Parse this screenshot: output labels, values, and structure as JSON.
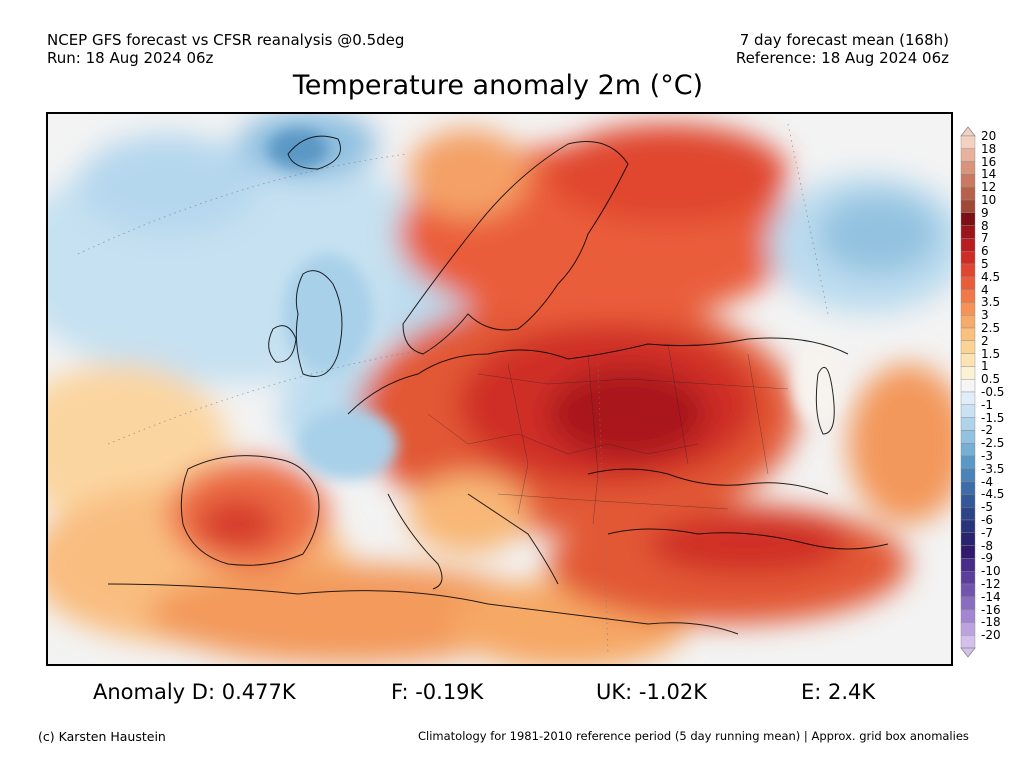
{
  "header": {
    "line1_left": "NCEP GFS forecast vs CFSR reanalysis @0.5deg",
    "line2_left": "Run: 18 Aug 2024 06z",
    "line1_right": "7 day forecast mean (168h)",
    "line2_right": "Reference: 18 Aug 2024 06z"
  },
  "title": "Temperature anomaly 2m (°C)",
  "legend": {
    "labels": [
      "20",
      "18",
      "16",
      "14",
      "12",
      "10",
      "9",
      "8",
      "7",
      "6",
      "5",
      "4.5",
      "4",
      "3.5",
      "3",
      "2.5",
      "2",
      "1.5",
      "1",
      "0.5",
      "-0.5",
      "-1",
      "-1.5",
      "-2",
      "-2.5",
      "-3",
      "-3.5",
      "-4",
      "-4.5",
      "-5",
      "-6",
      "-7",
      "-8",
      "-9",
      "-10",
      "-12",
      "-14",
      "-16",
      "-18",
      "-20"
    ],
    "colors": [
      "#f4d0c0",
      "#e8b19b",
      "#d9957c",
      "#c97a62",
      "#b7614b",
      "#a04837",
      "#7e0f16",
      "#9a1419",
      "#b81d1f",
      "#d02c26",
      "#e0462f",
      "#ea5d3a",
      "#f07947",
      "#f59357",
      "#f7ab6a",
      "#f9c07e",
      "#fbd396",
      "#fce3b2",
      "#fdf1d4",
      "#f5f5f5",
      "#e1eef8",
      "#c9e2f2",
      "#aed3ea",
      "#93c2e0",
      "#77aed4",
      "#5c98c5",
      "#4b82b7",
      "#3e6ca8",
      "#345897",
      "#2d4486",
      "#283479",
      "#2a236d",
      "#311a6e",
      "#472c88",
      "#5b3e9b",
      "#7254ad",
      "#8a6cc0",
      "#a386d1",
      "#bca2df",
      "#d3c0ec"
    ]
  },
  "anomalies": [
    {
      "label": "Anomaly D: 0.477K",
      "region": "D",
      "value": 0.477
    },
    {
      "label": "F: -0.19K",
      "region": "F",
      "value": -0.19
    },
    {
      "label": "UK: -1.02K",
      "region": "UK",
      "value": -1.02
    },
    {
      "label": "E: 2.4K",
      "region": "E",
      "value": 2.4
    }
  ],
  "footer": {
    "left": "(c) Karsten Haustein",
    "right": "Climatology for 1981-2010 reference period (5 day running mean) | Approx. grid box anomalies"
  }
}
